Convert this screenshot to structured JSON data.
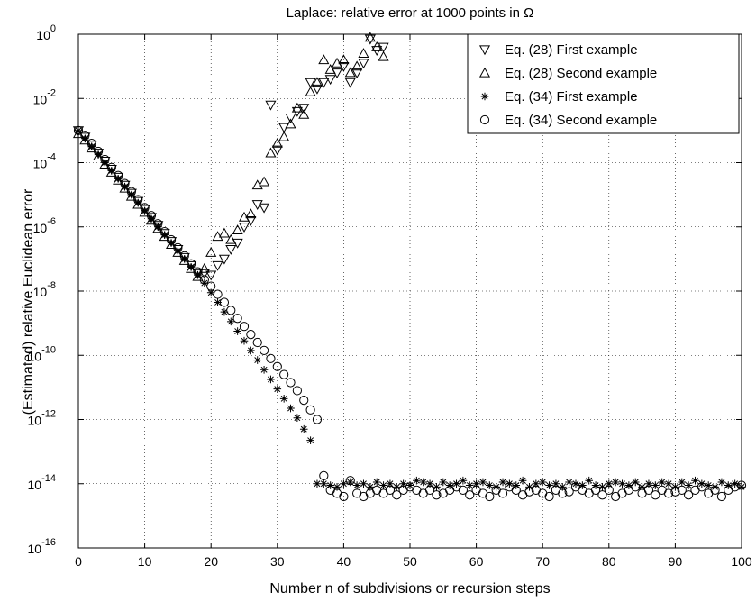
{
  "chart_data": {
    "type": "scatter",
    "title": "Laplace: relative error at 1000 points in Ω",
    "xlabel": "Number n of subdivisions or recursion steps",
    "ylabel": "(Estimated) relative Euclidean error",
    "xlim": [
      0,
      100
    ],
    "ylim_exponent": [
      -16,
      0
    ],
    "yscale": "log",
    "grid": true,
    "legend_position": "top-right",
    "xticks": [
      "0",
      "10",
      "20",
      "30",
      "40",
      "50",
      "60",
      "70",
      "80",
      "90",
      "100"
    ],
    "yticks": [
      "10^0",
      "10^-2",
      "10^-4",
      "10^-6",
      "10^-8",
      "10^-10",
      "10^-12",
      "10^-14",
      "10^-16"
    ],
    "series": [
      {
        "name": "Eq. (28) First example",
        "marker": "triangle-down",
        "x": [
          0,
          1,
          2,
          3,
          4,
          5,
          6,
          7,
          8,
          9,
          10,
          11,
          12,
          13,
          14,
          15,
          16,
          17,
          18,
          19,
          20,
          21,
          22,
          23,
          24,
          25,
          26,
          27,
          28,
          29,
          30,
          31,
          32,
          33,
          34,
          35,
          36,
          37,
          38,
          39,
          40,
          41,
          42,
          43,
          44,
          45,
          46
        ],
        "log10_y": [
          -3.0,
          -3.2,
          -3.45,
          -3.7,
          -3.95,
          -4.2,
          -4.45,
          -4.7,
          -4.95,
          -5.2,
          -5.45,
          -5.7,
          -5.95,
          -6.2,
          -6.45,
          -6.7,
          -6.95,
          -7.2,
          -7.45,
          -7.45,
          -7.5,
          -7.2,
          -7.0,
          -6.7,
          -6.5,
          -6.0,
          -5.8,
          -5.3,
          -5.4,
          -2.2,
          -3.6,
          -2.9,
          -2.6,
          -2.4,
          -2.3,
          -1.5,
          -1.7,
          -1.5,
          -1.4,
          -1.2,
          -1.0,
          -1.5,
          -1.2,
          -0.9,
          -0.15,
          -0.5,
          -0.4
        ]
      },
      {
        "name": "Eq. (28) Second example",
        "marker": "triangle-up",
        "x": [
          0,
          1,
          2,
          3,
          4,
          5,
          6,
          7,
          8,
          9,
          10,
          11,
          12,
          13,
          14,
          15,
          16,
          17,
          18,
          19,
          20,
          21,
          22,
          23,
          24,
          25,
          26,
          27,
          28,
          29,
          30,
          31,
          32,
          33,
          34,
          35,
          36,
          37,
          38,
          39,
          40,
          41,
          42,
          43,
          44,
          45,
          46
        ],
        "log10_y": [
          -3.1,
          -3.3,
          -3.55,
          -3.8,
          -4.05,
          -4.3,
          -4.55,
          -4.8,
          -5.05,
          -5.3,
          -5.55,
          -5.8,
          -6.05,
          -6.3,
          -6.55,
          -6.8,
          -7.05,
          -7.3,
          -7.55,
          -7.3,
          -6.8,
          -6.3,
          -6.2,
          -6.4,
          -6.1,
          -5.7,
          -5.6,
          -4.7,
          -4.6,
          -3.7,
          -3.4,
          -3.2,
          -2.8,
          -2.3,
          -2.5,
          -1.8,
          -1.5,
          -0.8,
          -1.1,
          -0.9,
          -0.8,
          -1.2,
          -1.0,
          -0.6,
          -0.1,
          -0.4,
          -0.7
        ]
      },
      {
        "name": "Eq. (34) First example",
        "marker": "asterisk",
        "x": [
          0,
          1,
          2,
          3,
          4,
          5,
          6,
          7,
          8,
          9,
          10,
          11,
          12,
          13,
          14,
          15,
          16,
          17,
          18,
          19,
          20,
          21,
          22,
          23,
          24,
          25,
          26,
          27,
          28,
          29,
          30,
          31,
          32,
          33,
          34,
          35,
          36,
          37,
          38,
          39,
          40,
          41,
          42,
          43,
          44,
          45,
          46,
          47,
          48,
          49,
          50,
          51,
          52,
          53,
          54,
          55,
          56,
          57,
          58,
          59,
          60,
          61,
          62,
          63,
          64,
          65,
          66,
          67,
          68,
          69,
          70,
          71,
          72,
          73,
          74,
          75,
          76,
          77,
          78,
          79,
          80,
          81,
          82,
          83,
          84,
          85,
          86,
          87,
          88,
          89,
          90,
          91,
          92,
          93,
          94,
          95,
          96,
          97,
          98,
          99,
          100
        ],
        "log10_y": [
          -3.0,
          -3.25,
          -3.5,
          -3.75,
          -4.0,
          -4.25,
          -4.5,
          -4.75,
          -5.0,
          -5.25,
          -5.5,
          -5.75,
          -6.0,
          -6.25,
          -6.5,
          -6.75,
          -7.0,
          -7.25,
          -7.5,
          -7.75,
          -8.05,
          -8.35,
          -8.65,
          -8.95,
          -9.25,
          -9.55,
          -9.85,
          -10.15,
          -10.45,
          -10.75,
          -11.05,
          -11.35,
          -11.65,
          -11.95,
          -12.3,
          -12.65,
          -14.0,
          -14.0,
          -14.05,
          -14.1,
          -14.0,
          -13.95,
          -14.05,
          -14.0,
          -14.1,
          -13.95,
          -14.05,
          -14.0,
          -14.1,
          -14.0,
          -14.05,
          -13.9,
          -13.95,
          -14.0,
          -14.1,
          -13.95,
          -14.05,
          -14.0,
          -13.9,
          -14.05,
          -14.0,
          -13.95,
          -14.05,
          -14.1,
          -13.95,
          -14.0,
          -14.05,
          -13.9,
          -14.1,
          -14.0,
          -13.95,
          -14.05,
          -14.0,
          -14.1,
          -13.95,
          -14.0,
          -14.05,
          -13.9,
          -14.05,
          -14.1,
          -14.0,
          -13.95,
          -14.0,
          -14.05,
          -13.95,
          -14.1,
          -14.0,
          -14.05,
          -13.95,
          -14.0,
          -14.1,
          -13.95,
          -14.05,
          -13.9,
          -14.0,
          -14.05,
          -14.1,
          -13.95,
          -14.05,
          -14.0,
          -14.1
        ]
      },
      {
        "name": "Eq. (34) Second example",
        "marker": "circle",
        "x": [
          0,
          1,
          2,
          3,
          4,
          5,
          6,
          7,
          8,
          9,
          10,
          11,
          12,
          13,
          14,
          15,
          16,
          17,
          18,
          19,
          20,
          21,
          22,
          23,
          24,
          25,
          26,
          27,
          28,
          29,
          30,
          31,
          32,
          33,
          34,
          35,
          36,
          37,
          38,
          39,
          40,
          41,
          42,
          43,
          44,
          45,
          46,
          47,
          48,
          49,
          50,
          51,
          52,
          53,
          54,
          55,
          56,
          57,
          58,
          59,
          60,
          61,
          62,
          63,
          64,
          65,
          66,
          67,
          68,
          69,
          70,
          71,
          72,
          73,
          74,
          75,
          76,
          77,
          78,
          79,
          80,
          81,
          82,
          83,
          84,
          85,
          86,
          87,
          88,
          89,
          90,
          91,
          92,
          93,
          94,
          95,
          96,
          97,
          98,
          99,
          100
        ],
        "log10_y": [
          -3.0,
          -3.15,
          -3.4,
          -3.65,
          -3.9,
          -4.15,
          -4.4,
          -4.65,
          -4.9,
          -5.15,
          -5.4,
          -5.65,
          -5.9,
          -6.15,
          -6.4,
          -6.65,
          -6.9,
          -7.15,
          -7.4,
          -7.65,
          -7.85,
          -8.1,
          -8.35,
          -8.6,
          -8.85,
          -9.1,
          -9.35,
          -9.6,
          -9.85,
          -10.1,
          -10.35,
          -10.6,
          -10.85,
          -11.1,
          -11.4,
          -11.7,
          -12.0,
          -13.75,
          -14.2,
          -14.3,
          -14.4,
          -13.9,
          -14.3,
          -14.4,
          -14.3,
          -14.2,
          -14.3,
          -14.2,
          -14.35,
          -14.2,
          -14.1,
          -14.2,
          -14.3,
          -14.2,
          -14.35,
          -14.3,
          -14.2,
          -14.1,
          -14.2,
          -14.35,
          -14.2,
          -14.3,
          -14.4,
          -14.2,
          -14.3,
          -14.1,
          -14.2,
          -14.35,
          -14.25,
          -14.2,
          -14.3,
          -14.4,
          -14.2,
          -14.3,
          -14.25,
          -14.1,
          -14.2,
          -14.3,
          -14.2,
          -14.35,
          -14.2,
          -14.4,
          -14.3,
          -14.2,
          -14.1,
          -14.3,
          -14.2,
          -14.35,
          -14.2,
          -14.3,
          -14.25,
          -14.2,
          -14.35,
          -14.2,
          -14.1,
          -14.3,
          -14.2,
          -14.4,
          -14.2,
          -14.1,
          -14.05
        ]
      }
    ]
  }
}
